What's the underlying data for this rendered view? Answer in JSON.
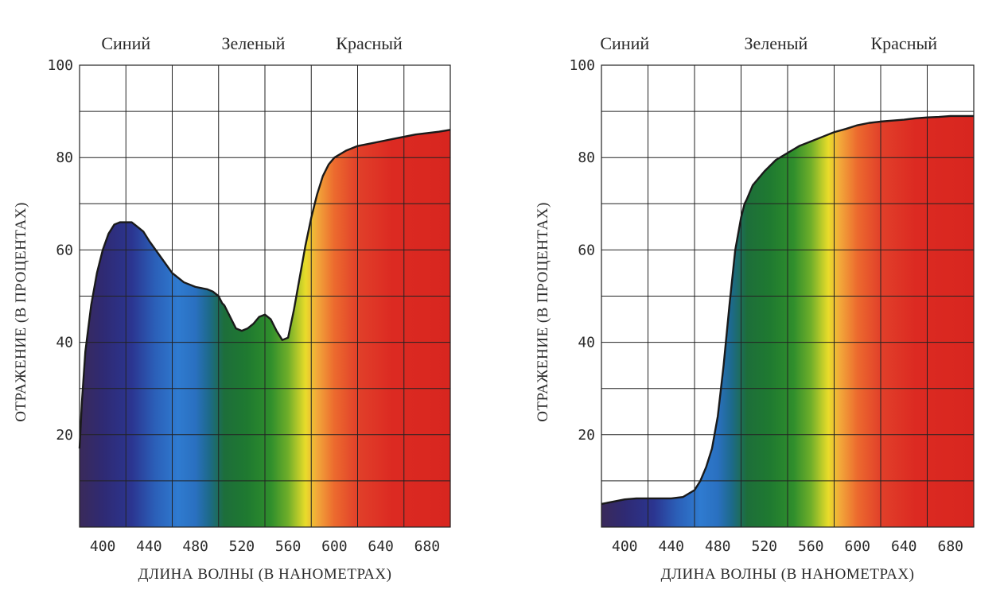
{
  "chart_data": [
    {
      "type": "area",
      "band_labels": [
        "Синий",
        "Зеленый",
        "Красный"
      ],
      "band_label_x": [
        420,
        530,
        630
      ],
      "xlabel": "ДЛИНА ВОЛНЫ (В НАНОМЕТРАХ)",
      "ylabel": "ОТРАЖЕНИЕ (В ПРОЦЕНТАХ)",
      "xlim": [
        380,
        700
      ],
      "ylim": [
        0,
        100
      ],
      "x_ticks": [
        400,
        440,
        480,
        520,
        560,
        600,
        640,
        680
      ],
      "y_ticks": [
        20,
        40,
        60,
        80,
        100
      ],
      "grid": true,
      "series": [
        {
          "x": [
            380,
            382,
            385,
            390,
            395,
            400,
            405,
            410,
            415,
            420,
            425,
            430,
            435,
            440,
            450,
            460,
            470,
            480,
            490,
            495,
            500,
            503,
            505,
            510,
            515,
            520,
            525,
            530,
            535,
            540,
            545,
            550,
            555,
            560,
            565,
            570,
            575,
            580,
            585,
            590,
            595,
            600,
            610,
            620,
            630,
            640,
            650,
            660,
            670,
            680,
            690,
            700
          ],
          "y": [
            17,
            27,
            38,
            48,
            55,
            60,
            63.5,
            65.5,
            66,
            66,
            66,
            65,
            64,
            62,
            58.5,
            55,
            53,
            52,
            51.5,
            51,
            50,
            48.5,
            48,
            45.5,
            43,
            42.5,
            43,
            44,
            45.5,
            46,
            45,
            42.5,
            40.5,
            41,
            47,
            54,
            61,
            67,
            72,
            76,
            78.5,
            80,
            81.5,
            82.5,
            83,
            83.5,
            84,
            84.5,
            85,
            85.3,
            85.6,
            86
          ]
        }
      ]
    },
    {
      "type": "area",
      "band_labels": [
        "Синий",
        "Зеленый",
        "Красный"
      ],
      "band_label_x": [
        400,
        530,
        640
      ],
      "xlabel": "ДЛИНА ВОЛНЫ (В НАНОМЕТРАХ)",
      "ylabel": "ОТРАЖЕНИЕ (В ПРОЦЕНТАХ)",
      "xlim": [
        380,
        700
      ],
      "ylim": [
        0,
        100
      ],
      "x_ticks": [
        400,
        440,
        480,
        520,
        560,
        600,
        640,
        680
      ],
      "y_ticks": [
        20,
        40,
        60,
        80,
        100
      ],
      "grid": true,
      "series": [
        {
          "x": [
            380,
            390,
            400,
            410,
            420,
            430,
            440,
            450,
            460,
            465,
            470,
            475,
            480,
            485,
            490,
            495,
            500,
            503,
            505,
            510,
            520,
            530,
            540,
            550,
            560,
            570,
            580,
            590,
            600,
            610,
            620,
            630,
            640,
            650,
            660,
            670,
            680,
            690,
            700
          ],
          "y": [
            5,
            5.5,
            6,
            6.2,
            6.2,
            6.2,
            6.2,
            6.5,
            8,
            10,
            13,
            17,
            24,
            35,
            48,
            60,
            67,
            70,
            71,
            74,
            77,
            79.5,
            81,
            82.5,
            83.5,
            84.5,
            85.5,
            86.2,
            87,
            87.5,
            87.8,
            88,
            88.2,
            88.5,
            88.7,
            88.8,
            89,
            89,
            89
          ]
        }
      ]
    }
  ]
}
